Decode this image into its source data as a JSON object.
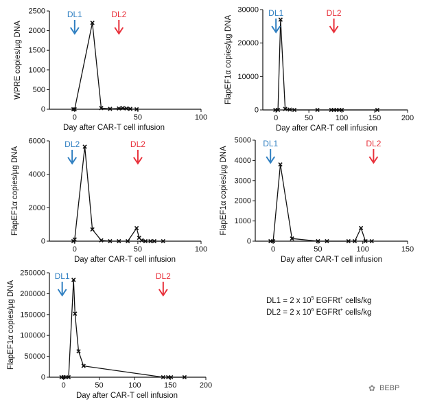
{
  "chart_data": [
    {
      "type": "line",
      "panel": "top-left",
      "xlabel": "Day after CAR-T cell infusion",
      "ylabel": "WPRE copies/µg DNA",
      "xlim": [
        -20,
        100
      ],
      "ylim": [
        0,
        2500
      ],
      "xticks": [
        0,
        50,
        100
      ],
      "yticks": [
        0,
        500,
        1000,
        1500,
        2000,
        2500
      ],
      "x": [
        -1,
        0,
        14,
        21,
        28,
        35,
        38,
        41,
        44,
        49
      ],
      "y": [
        0,
        0,
        2200,
        30,
        10,
        20,
        30,
        20,
        10,
        0
      ],
      "annotations": [
        {
          "label": "DL1",
          "x": 0,
          "color": "#2f7fc1"
        },
        {
          "label": "DL2",
          "x": 35,
          "color": "#e8303a"
        }
      ]
    },
    {
      "type": "line",
      "panel": "top-right",
      "xlabel": "Day after CAR-T cell infusion",
      "ylabel": "FlapEF1α copies/µg DNA",
      "xlim": [
        -20,
        200
      ],
      "ylim": [
        0,
        30000
      ],
      "xticks": [
        0,
        50,
        100,
        150,
        200
      ],
      "yticks": [
        0,
        10000,
        20000,
        30000
      ],
      "x": [
        -1,
        3,
        7,
        14,
        21,
        28,
        63,
        84,
        88,
        92,
        96,
        100,
        154
      ],
      "y": [
        0,
        0,
        27000,
        300,
        100,
        0,
        0,
        0,
        0,
        0,
        0,
        0,
        0
      ],
      "annotations": [
        {
          "label": "DL1",
          "x": 0,
          "color": "#2f7fc1"
        },
        {
          "label": "DL2",
          "x": 88,
          "color": "#e8303a"
        }
      ]
    },
    {
      "type": "line",
      "panel": "middle-left",
      "xlabel": "Day after CAR-T cell infusion",
      "ylabel": "FlapEF1α copies/µg DNA",
      "xlim": [
        -20,
        100
      ],
      "ylim": [
        0,
        6000
      ],
      "xticks": [
        0,
        50,
        100
      ],
      "yticks": [
        0,
        2000,
        4000,
        6000
      ],
      "x": [
        -1,
        0,
        8,
        14,
        21,
        28,
        35,
        42,
        49,
        51,
        53,
        56,
        60,
        63,
        70
      ],
      "y": [
        0,
        100,
        5650,
        700,
        50,
        0,
        0,
        0,
        780,
        200,
        50,
        0,
        0,
        0,
        0
      ],
      "annotations": [
        {
          "label": "DL2",
          "x": -2,
          "color": "#2f7fc1"
        },
        {
          "label": "DL2",
          "x": 50,
          "color": "#e8303a"
        }
      ]
    },
    {
      "type": "line",
      "panel": "middle-right",
      "xlabel": "Day after CAR-T cell infusion",
      "ylabel": "FlapEF1α copies/µg DNA",
      "xlim": [
        -20,
        150
      ],
      "ylim": [
        0,
        5000
      ],
      "xticks": [
        0,
        50,
        100,
        150
      ],
      "yticks": [
        0,
        1000,
        2000,
        3000,
        4000,
        5000
      ],
      "x": [
        -3,
        0,
        8,
        21,
        50,
        60,
        84,
        91,
        98,
        103,
        110
      ],
      "y": [
        0,
        0,
        3800,
        130,
        0,
        0,
        0,
        0,
        650,
        0,
        0
      ],
      "annotations": [
        {
          "label": "DL1",
          "x": -3,
          "color": "#2f7fc1"
        },
        {
          "label": "DL2",
          "x": 112,
          "color": "#e8303a"
        }
      ]
    },
    {
      "type": "line",
      "panel": "bottom-left",
      "xlabel": "Day after CAR-T cell infusion",
      "ylabel": "FlapEF1α copies/µg DNA",
      "xlim": [
        -20,
        200
      ],
      "ylim": [
        0,
        250000
      ],
      "xticks": [
        0,
        50,
        100,
        150,
        200
      ],
      "yticks": [
        0,
        50000,
        100000,
        150000,
        200000,
        250000
      ],
      "x": [
        -3,
        0,
        3,
        7,
        14,
        16,
        21,
        28,
        140,
        147,
        151,
        170
      ],
      "y": [
        0,
        0,
        0,
        0,
        233000,
        152000,
        62000,
        27000,
        0,
        0,
        0,
        0
      ],
      "annotations": [
        {
          "label": "DL1",
          "x": -2,
          "color": "#2f7fc1"
        },
        {
          "label": "DL2",
          "x": 140,
          "color": "#e8303a"
        }
      ]
    }
  ],
  "legend": {
    "line1": {
      "pre": "DL1 = 2 x 10",
      "sup1": "5",
      "mid": " EGFRt",
      "sup2": "+",
      "post": " cells/kg"
    },
    "line2": {
      "pre": "DL2 = 2 x 10",
      "sup1": "6",
      "mid": " EGFRt",
      "sup2": "+",
      "post": " cells/kg"
    }
  },
  "watermark": {
    "text": "BEBP"
  }
}
